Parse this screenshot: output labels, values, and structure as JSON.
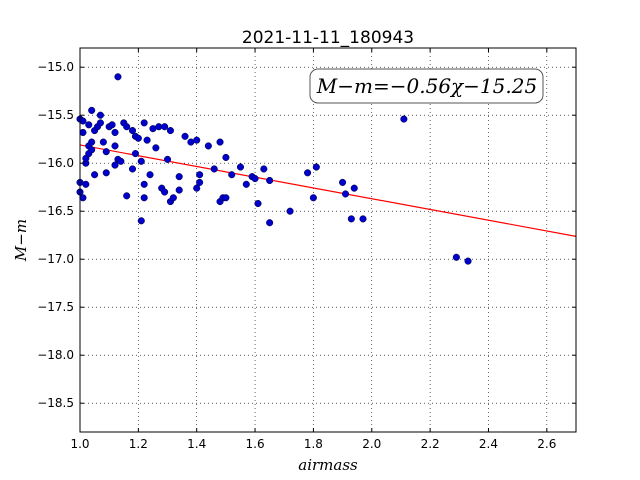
{
  "chart_data": {
    "type": "scatter",
    "title": "2021-11-11_180943",
    "xlabel": "airmass",
    "ylabel": "M−m",
    "xlim": [
      1.0,
      2.7
    ],
    "ylim": [
      -18.8,
      -14.8
    ],
    "x_ticks": [
      1.0,
      1.2,
      1.4,
      1.6,
      1.8,
      2.0,
      2.2,
      2.4,
      2.6
    ],
    "x_tick_labels": [
      "1.0",
      "1.2",
      "1.4",
      "1.6",
      "1.8",
      "2.0",
      "2.2",
      "2.4",
      "2.6"
    ],
    "y_ticks": [
      -15.0,
      -15.5,
      -16.0,
      -16.5,
      -17.0,
      -17.5,
      -18.0,
      -18.5
    ],
    "y_tick_labels": [
      "−15.0",
      "−15.5",
      "−16.0",
      "−16.5",
      "−17.0",
      "−17.5",
      "−18.0",
      "−18.5"
    ],
    "grid": true,
    "annotation": "M−m=−0.56χ−15.25",
    "annotation_position": "top-right",
    "colors": {
      "points": "#0000cc",
      "fit_line": "#ff0000"
    },
    "fit": {
      "slope": -0.56,
      "intercept": -15.25
    },
    "series": [
      {
        "points": [
          [
            1.0,
            -15.54
          ],
          [
            1.01,
            -15.56
          ],
          [
            1.01,
            -15.68
          ],
          [
            1.0,
            -16.2
          ],
          [
            1.0,
            -16.3
          ],
          [
            1.01,
            -16.36
          ],
          [
            1.02,
            -16.22
          ],
          [
            1.02,
            -16.0
          ],
          [
            1.02,
            -15.95
          ],
          [
            1.03,
            -15.9
          ],
          [
            1.03,
            -15.82
          ],
          [
            1.04,
            -15.78
          ],
          [
            1.04,
            -15.86
          ],
          [
            1.03,
            -15.6
          ],
          [
            1.04,
            -15.45
          ],
          [
            1.05,
            -15.66
          ],
          [
            1.06,
            -15.62
          ],
          [
            1.07,
            -15.58
          ],
          [
            1.07,
            -15.5
          ],
          [
            1.08,
            -15.78
          ],
          [
            1.09,
            -15.88
          ],
          [
            1.1,
            -15.62
          ],
          [
            1.11,
            -15.6
          ],
          [
            1.12,
            -15.68
          ],
          [
            1.12,
            -15.82
          ],
          [
            1.13,
            -15.96
          ],
          [
            1.12,
            -16.02
          ],
          [
            1.14,
            -15.98
          ],
          [
            1.05,
            -16.12
          ],
          [
            1.09,
            -16.1
          ],
          [
            1.13,
            -15.1
          ],
          [
            1.15,
            -15.58
          ],
          [
            1.16,
            -15.62
          ],
          [
            1.18,
            -15.66
          ],
          [
            1.19,
            -15.72
          ],
          [
            1.19,
            -15.9
          ],
          [
            1.2,
            -15.74
          ],
          [
            1.21,
            -15.98
          ],
          [
            1.18,
            -16.06
          ],
          [
            1.16,
            -16.34
          ],
          [
            1.22,
            -15.58
          ],
          [
            1.23,
            -15.76
          ],
          [
            1.25,
            -15.64
          ],
          [
            1.26,
            -15.84
          ],
          [
            1.27,
            -15.62
          ],
          [
            1.29,
            -15.62
          ],
          [
            1.3,
            -15.96
          ],
          [
            1.31,
            -15.66
          ],
          [
            1.24,
            -16.12
          ],
          [
            1.22,
            -16.22
          ],
          [
            1.22,
            -16.36
          ],
          [
            1.21,
            -16.6
          ],
          [
            1.28,
            -16.26
          ],
          [
            1.29,
            -16.3
          ],
          [
            1.31,
            -16.4
          ],
          [
            1.32,
            -16.36
          ],
          [
            1.34,
            -16.14
          ],
          [
            1.34,
            -16.28
          ],
          [
            1.36,
            -15.72
          ],
          [
            1.38,
            -15.78
          ],
          [
            1.4,
            -15.76
          ],
          [
            1.41,
            -16.12
          ],
          [
            1.41,
            -16.2
          ],
          [
            1.4,
            -16.26
          ],
          [
            1.44,
            -15.82
          ],
          [
            1.46,
            -16.06
          ],
          [
            1.48,
            -15.78
          ],
          [
            1.48,
            -16.4
          ],
          [
            1.49,
            -16.36
          ],
          [
            1.5,
            -16.36
          ],
          [
            1.5,
            -15.94
          ],
          [
            1.52,
            -16.12
          ],
          [
            1.55,
            -16.04
          ],
          [
            1.57,
            -16.22
          ],
          [
            1.59,
            -16.14
          ],
          [
            1.6,
            -16.16
          ],
          [
            1.61,
            -16.42
          ],
          [
            1.63,
            -16.06
          ],
          [
            1.65,
            -16.18
          ],
          [
            1.65,
            -16.62
          ],
          [
            1.72,
            -16.5
          ],
          [
            1.78,
            -16.1
          ],
          [
            1.8,
            -16.36
          ],
          [
            1.81,
            -16.04
          ],
          [
            1.9,
            -16.2
          ],
          [
            1.91,
            -16.32
          ],
          [
            1.93,
            -16.58
          ],
          [
            1.94,
            -16.26
          ],
          [
            1.97,
            -16.58
          ],
          [
            2.11,
            -15.54
          ],
          [
            2.29,
            -16.98
          ],
          [
            2.33,
            -17.02
          ]
        ]
      }
    ]
  }
}
